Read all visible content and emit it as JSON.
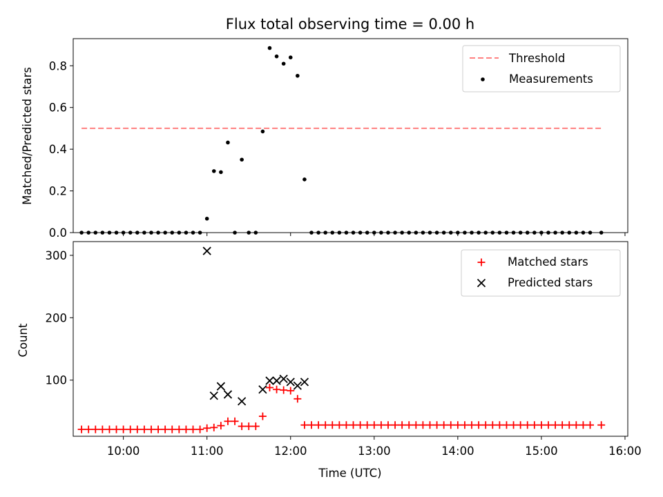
{
  "chart_data": [
    {
      "type": "scatter",
      "title": "Flux total observing time = 0.00 h",
      "xlabel": "",
      "ylabel": "Matched/Predicted stars",
      "ylim": [
        0,
        0.93
      ],
      "yticks": [
        "0.0",
        "0.2",
        "0.4",
        "0.6",
        "0.8"
      ],
      "ytick_values": [
        0,
        0.2,
        0.4,
        0.6,
        0.8
      ],
      "xlim": [
        "09:24",
        "16:02"
      ],
      "xtick_values": [
        "10:00",
        "11:00",
        "12:00",
        "13:00",
        "14:00",
        "15:00",
        "16:00"
      ],
      "legend_position": "top-right",
      "threshold": {
        "name": "Threshold",
        "y": 0.5,
        "x_range": [
          "09:30",
          "15:43"
        ],
        "color": "#ff7f7f"
      },
      "series": [
        {
          "name": "Measurements",
          "color": "#000000",
          "points": [
            [
              "09:30",
              0
            ],
            [
              "09:35",
              0
            ],
            [
              "09:40",
              0
            ],
            [
              "09:45",
              0
            ],
            [
              "09:50",
              0
            ],
            [
              "09:55",
              0
            ],
            [
              "10:00",
              0
            ],
            [
              "10:05",
              0
            ],
            [
              "10:10",
              0
            ],
            [
              "10:15",
              0
            ],
            [
              "10:20",
              0
            ],
            [
              "10:25",
              0
            ],
            [
              "10:30",
              0
            ],
            [
              "10:35",
              0
            ],
            [
              "10:40",
              0
            ],
            [
              "10:45",
              0
            ],
            [
              "10:50",
              0
            ],
            [
              "10:55",
              0
            ],
            [
              "11:00",
              0.067
            ],
            [
              "11:05",
              0.295
            ],
            [
              "11:10",
              0.29
            ],
            [
              "11:15",
              0.432
            ],
            [
              "11:20",
              0
            ],
            [
              "11:25",
              0.35
            ],
            [
              "11:30",
              0
            ],
            [
              "11:35",
              0
            ],
            [
              "11:40",
              0.485
            ],
            [
              "11:45",
              0.885
            ],
            [
              "11:50",
              0.845
            ],
            [
              "11:55",
              0.81
            ],
            [
              "12:00",
              0.84
            ],
            [
              "12:05",
              0.752
            ],
            [
              "12:10",
              0.255
            ],
            [
              "12:15",
              0
            ],
            [
              "12:20",
              0
            ],
            [
              "12:25",
              0
            ],
            [
              "12:30",
              0
            ],
            [
              "12:35",
              0
            ],
            [
              "12:40",
              0
            ],
            [
              "12:45",
              0
            ],
            [
              "12:50",
              0
            ],
            [
              "12:55",
              0
            ],
            [
              "13:00",
              0
            ],
            [
              "13:05",
              0
            ],
            [
              "13:10",
              0
            ],
            [
              "13:15",
              0
            ],
            [
              "13:20",
              0
            ],
            [
              "13:25",
              0
            ],
            [
              "13:30",
              0
            ],
            [
              "13:35",
              0
            ],
            [
              "13:40",
              0
            ],
            [
              "13:45",
              0
            ],
            [
              "13:50",
              0
            ],
            [
              "13:55",
              0
            ],
            [
              "14:00",
              0
            ],
            [
              "14:05",
              0
            ],
            [
              "14:10",
              0
            ],
            [
              "14:15",
              0
            ],
            [
              "14:20",
              0
            ],
            [
              "14:25",
              0
            ],
            [
              "14:30",
              0
            ],
            [
              "14:35",
              0
            ],
            [
              "14:40",
              0
            ],
            [
              "14:45",
              0
            ],
            [
              "14:50",
              0
            ],
            [
              "14:55",
              0
            ],
            [
              "15:00",
              0
            ],
            [
              "15:05",
              0
            ],
            [
              "15:10",
              0
            ],
            [
              "15:15",
              0
            ],
            [
              "15:20",
              0
            ],
            [
              "15:25",
              0
            ],
            [
              "15:30",
              0
            ],
            [
              "15:35",
              0
            ],
            [
              "15:43",
              0
            ]
          ]
        }
      ]
    },
    {
      "type": "scatter",
      "title": "",
      "xlabel": "Time (UTC)",
      "ylabel": "Count",
      "ylim": [
        10,
        322
      ],
      "yticks": [
        "100",
        "200",
        "300"
      ],
      "ytick_values": [
        100,
        200,
        300
      ],
      "xlim": [
        "09:24",
        "16:02"
      ],
      "xticks": [
        "10:00",
        "11:00",
        "12:00",
        "13:00",
        "14:00",
        "15:00",
        "16:00"
      ],
      "xtick_values": [
        "10:00",
        "11:00",
        "12:00",
        "13:00",
        "14:00",
        "15:00",
        "16:00"
      ],
      "legend_position": "top-right",
      "series": [
        {
          "name": "Matched stars",
          "marker": "plus",
          "color": "#ff0000",
          "points": [
            [
              "09:30",
              21
            ],
            [
              "09:35",
              21
            ],
            [
              "09:40",
              21
            ],
            [
              "09:45",
              21
            ],
            [
              "09:50",
              21
            ],
            [
              "09:55",
              21
            ],
            [
              "10:00",
              21
            ],
            [
              "10:05",
              21
            ],
            [
              "10:10",
              21
            ],
            [
              "10:15",
              21
            ],
            [
              "10:20",
              21
            ],
            [
              "10:25",
              21
            ],
            [
              "10:30",
              21
            ],
            [
              "10:35",
              21
            ],
            [
              "10:40",
              21
            ],
            [
              "10:45",
              21
            ],
            [
              "10:50",
              21
            ],
            [
              "10:55",
              21
            ],
            [
              "11:00",
              23
            ],
            [
              "11:05",
              24
            ],
            [
              "11:10",
              27
            ],
            [
              "11:15",
              34
            ],
            [
              "11:20",
              34
            ],
            [
              "11:25",
              26
            ],
            [
              "11:30",
              26
            ],
            [
              "11:35",
              26
            ],
            [
              "11:40",
              42
            ],
            [
              "11:45",
              88
            ],
            [
              "11:50",
              85
            ],
            [
              "11:55",
              84
            ],
            [
              "12:00",
              83
            ],
            [
              "12:05",
              70
            ],
            [
              "12:10",
              28
            ],
            [
              "12:15",
              28
            ],
            [
              "12:20",
              28
            ],
            [
              "12:25",
              28
            ],
            [
              "12:30",
              28
            ],
            [
              "12:35",
              28
            ],
            [
              "12:40",
              28
            ],
            [
              "12:45",
              28
            ],
            [
              "12:50",
              28
            ],
            [
              "12:55",
              28
            ],
            [
              "13:00",
              28
            ],
            [
              "13:05",
              28
            ],
            [
              "13:10",
              28
            ],
            [
              "13:15",
              28
            ],
            [
              "13:20",
              28
            ],
            [
              "13:25",
              28
            ],
            [
              "13:30",
              28
            ],
            [
              "13:35",
              28
            ],
            [
              "13:40",
              28
            ],
            [
              "13:45",
              28
            ],
            [
              "13:50",
              28
            ],
            [
              "13:55",
              28
            ],
            [
              "14:00",
              28
            ],
            [
              "14:05",
              28
            ],
            [
              "14:10",
              28
            ],
            [
              "14:15",
              28
            ],
            [
              "14:20",
              28
            ],
            [
              "14:25",
              28
            ],
            [
              "14:30",
              28
            ],
            [
              "14:35",
              28
            ],
            [
              "14:40",
              28
            ],
            [
              "14:45",
              28
            ],
            [
              "14:50",
              28
            ],
            [
              "14:55",
              28
            ],
            [
              "15:00",
              28
            ],
            [
              "15:05",
              28
            ],
            [
              "15:10",
              28
            ],
            [
              "15:15",
              28
            ],
            [
              "15:20",
              28
            ],
            [
              "15:25",
              28
            ],
            [
              "15:30",
              28
            ],
            [
              "15:35",
              28
            ],
            [
              "15:43",
              28
            ]
          ]
        },
        {
          "name": "Predicted stars",
          "marker": "x",
          "color": "#000000",
          "points": [
            [
              "11:00",
              307
            ],
            [
              "11:05",
              75
            ],
            [
              "11:10",
              90
            ],
            [
              "11:15",
              77
            ],
            [
              "11:25",
              66
            ],
            [
              "11:40",
              85
            ],
            [
              "11:45",
              99
            ],
            [
              "11:50",
              99
            ],
            [
              "11:55",
              102
            ],
            [
              "12:00",
              97
            ],
            [
              "12:05",
              91
            ],
            [
              "12:10",
              97
            ]
          ]
        }
      ]
    }
  ]
}
